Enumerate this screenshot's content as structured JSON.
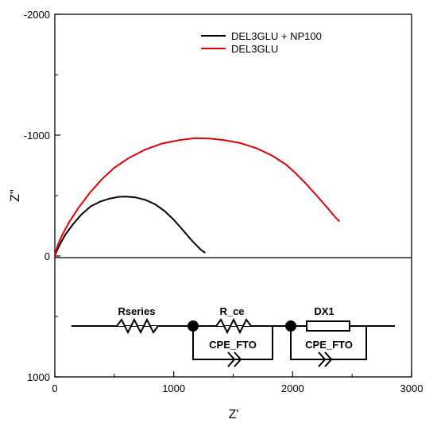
{
  "chart_data": {
    "type": "line",
    "xlabel": "Z'",
    "ylabel": "Z\"",
    "xlim": [
      0,
      3000
    ],
    "ylim": [
      1000,
      -2000
    ],
    "x_ticks": [
      0,
      1000,
      2000,
      3000
    ],
    "y_ticks": [
      1000,
      0,
      -1000,
      -2000
    ],
    "x_tick_labels": [
      "0",
      "1000",
      "2000",
      "3000"
    ],
    "y_tick_labels": [
      "1000",
      "0",
      "-1000",
      "-2000"
    ],
    "grid": false,
    "legend_position": "top-right",
    "series": [
      {
        "name": "DEL3GLU + NP100",
        "color": "#000000",
        "x": [
          0,
          20,
          50,
          90,
          150,
          220,
          300,
          380,
          460,
          540,
          600,
          680,
          760,
          840,
          920,
          1000,
          1060,
          1120,
          1160,
          1200,
          1230,
          1260
        ],
        "y": [
          0,
          -50,
          -110,
          -180,
          -260,
          -340,
          -410,
          -450,
          -475,
          -490,
          -492,
          -485,
          -465,
          -430,
          -375,
          -300,
          -235,
          -165,
          -120,
          -80,
          -50,
          -30
        ]
      },
      {
        "name": "DEL3GLU",
        "color": "#e00000",
        "x": [
          0,
          20,
          60,
          120,
          200,
          300,
          400,
          500,
          620,
          760,
          900,
          1050,
          1180,
          1300,
          1420,
          1560,
          1700,
          1820,
          1940,
          2020,
          2120,
          2220,
          2300,
          2360,
          2390
        ],
        "y": [
          0,
          -80,
          -170,
          -280,
          -400,
          -530,
          -640,
          -730,
          -810,
          -880,
          -930,
          -960,
          -975,
          -972,
          -960,
          -935,
          -890,
          -835,
          -760,
          -690,
          -590,
          -480,
          -390,
          -320,
          -290
        ]
      }
    ]
  },
  "circuit": {
    "labels": {
      "rseries": "Rseries",
      "rce": "R_ce",
      "dx1": "DX1",
      "cpe1": "CPE_FTO",
      "cpe2": "CPE_FTO"
    }
  }
}
